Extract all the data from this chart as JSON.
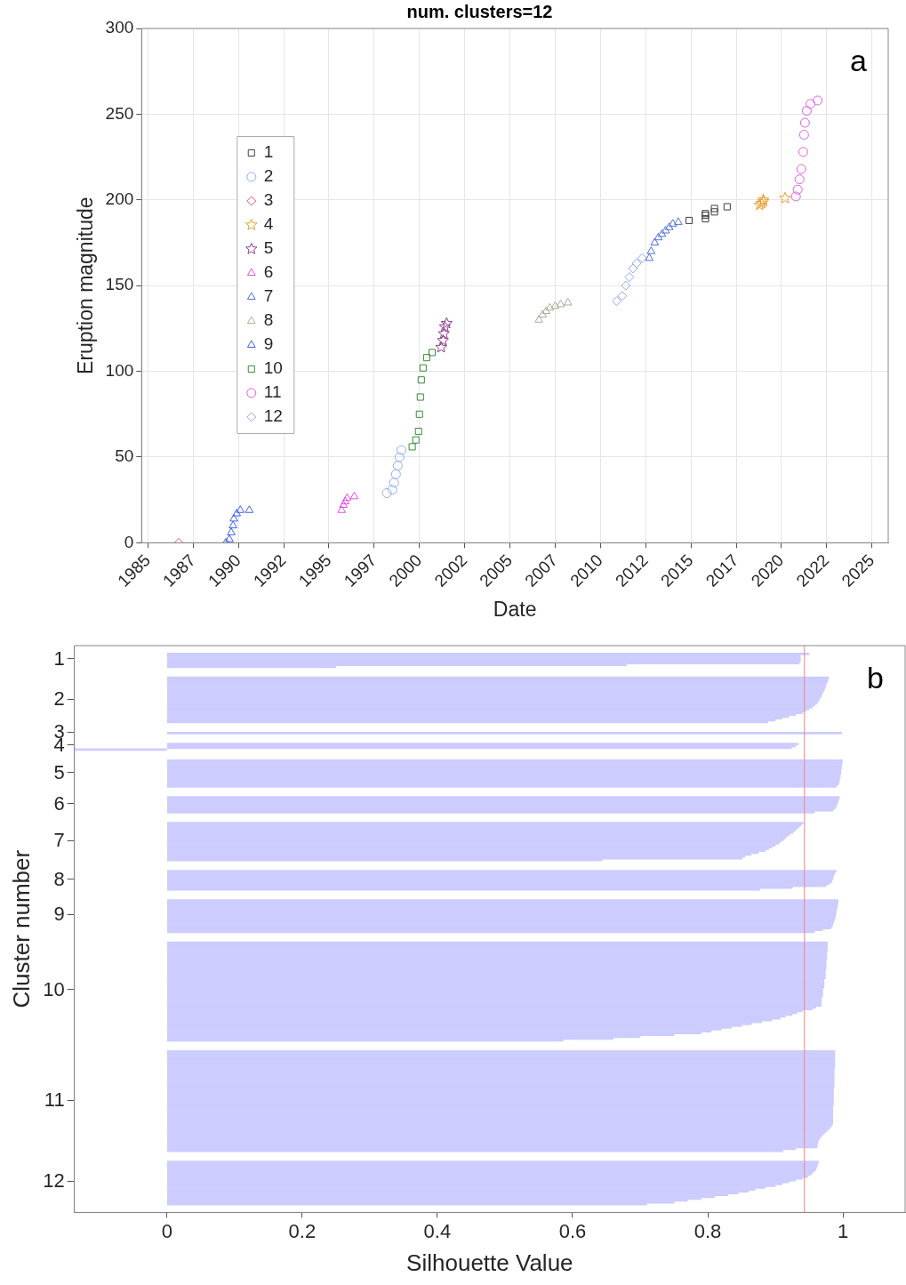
{
  "chart_data": [
    {
      "type": "scatter",
      "title": "num. clusters=12",
      "xlabel": "Date",
      "ylabel": "Eruption magnitude",
      "annotations": [
        "a"
      ],
      "grid": true,
      "legend": "left",
      "xlim": [
        1984.65,
        2025.9
      ],
      "xticks": [
        1985,
        {
          "value": 1987.5,
          "label": "1987"
        },
        1990,
        {
          "value": 1992.5,
          "label": "1992"
        },
        1995,
        {
          "value": 1997.5,
          "label": "1997"
        },
        2000,
        {
          "value": 2002.5,
          "label": "2002"
        },
        2005,
        {
          "value": 2007.5,
          "label": "2007"
        },
        2010,
        {
          "value": 2012.5,
          "label": "2012"
        },
        2015,
        {
          "value": 2017.5,
          "label": "2017"
        },
        2020,
        {
          "value": 2022.5,
          "label": "2022"
        },
        2025
      ],
      "ylim": [
        0,
        300
      ],
      "yticks": [
        0,
        50,
        100,
        150,
        200,
        250,
        300
      ],
      "series": [
        {
          "name": "1",
          "color": "#404040",
          "marker": "square",
          "x": [
            2014.9,
            2015.8,
            2015.8,
            2015.8,
            2016.3,
            2016.3,
            2017.0
          ],
          "values": [
            188,
            189,
            191,
            192,
            193,
            195,
            196
          ]
        },
        {
          "name": "2",
          "color": "#8fb0f0",
          "marker": "circle",
          "x": [
            1998.2,
            1998.5,
            1998.6,
            1998.7,
            1998.8,
            1998.9,
            1999.0
          ],
          "values": [
            29,
            31,
            35,
            40,
            45,
            50,
            54
          ]
        },
        {
          "name": "3",
          "color": "#e8506a",
          "marker": "diamond",
          "x": [
            1986.7
          ],
          "values": [
            0
          ]
        },
        {
          "name": "4",
          "color": "#e8a030",
          "marker": "star",
          "x": [
            2018.8,
            2018.9,
            2019.0,
            2019.0,
            2020.2
          ],
          "values": [
            197,
            198,
            199,
            200,
            201
          ]
        },
        {
          "name": "5",
          "color": "#8e3e8e",
          "marker": "star",
          "x": [
            2001.2,
            2001.3,
            2001.35,
            2001.4,
            2001.5
          ],
          "values": [
            114,
            118,
            122,
            126,
            128
          ]
        },
        {
          "name": "6",
          "color": "#e050e0",
          "marker": "triangle",
          "x": [
            1995.7,
            1995.8,
            1995.9,
            1996.0,
            1996.4
          ],
          "values": [
            19,
            22,
            24,
            26,
            27
          ]
        },
        {
          "name": "7",
          "color": "#5070d0",
          "marker": "triangle",
          "x": [
            2012.7,
            2012.8,
            2013.0,
            2013.2,
            2013.4,
            2013.6,
            2013.8,
            2014.0,
            2014.3
          ],
          "values": [
            166,
            170,
            175,
            178,
            180,
            182,
            184,
            186,
            187
          ]
        },
        {
          "name": "8",
          "color": "#a8b098",
          "marker": "triangle",
          "x": [
            2006.6,
            2006.8,
            2007.0,
            2007.2,
            2007.5,
            2007.8,
            2008.2
          ],
          "values": [
            130,
            133,
            135,
            137,
            138,
            139,
            140
          ]
        },
        {
          "name": "9",
          "color": "#4060f0",
          "marker": "triangle",
          "x": [
            1989.3,
            1989.5,
            1989.6,
            1989.7,
            1989.75,
            1989.9,
            1990.1,
            1990.6
          ],
          "values": [
            0,
            2,
            6,
            10,
            14,
            17,
            19,
            19
          ]
        },
        {
          "name": "10",
          "color": "#3a8a3a",
          "marker": "square",
          "x": [
            1999.6,
            1999.8,
            1999.95,
            2000.0,
            2000.05,
            2000.1,
            2000.2,
            2000.4,
            2000.7
          ],
          "values": [
            56,
            60,
            65,
            75,
            85,
            95,
            102,
            108,
            111
          ]
        },
        {
          "name": "11",
          "color": "#e060e0",
          "marker": "circle",
          "x": [
            2020.8,
            2020.9,
            2021.0,
            2021.1,
            2021.2,
            2021.25,
            2021.3,
            2021.4,
            2021.6,
            2022.0
          ],
          "values": [
            202,
            206,
            212,
            218,
            228,
            238,
            245,
            252,
            256,
            258
          ]
        },
        {
          "name": "12",
          "color": "#8ea8e8",
          "marker": "diamond",
          "x": [
            2010.9,
            2011.2,
            2011.4,
            2011.6,
            2011.8,
            2012.0,
            2012.3
          ],
          "values": [
            141,
            144,
            150,
            155,
            160,
            163,
            166
          ]
        }
      ]
    },
    {
      "type": "bar",
      "orientation": "horizontal",
      "xlabel": "Silhouette Value",
      "ylabel": "Cluster number",
      "annotations": [
        "b"
      ],
      "grid": false,
      "color": "#ccccff",
      "xlim": [
        -0.137,
        1.092
      ],
      "xticks": [
        0,
        0.2,
        0.4,
        0.6,
        0.8,
        1
      ],
      "ref_lines": [
        {
          "axis": "x",
          "value": 0.943,
          "color": "#ff8080"
        }
      ],
      "categories": [
        null,
        null,
        null,
        null,
        null,
        null,
        null,
        "1",
        null,
        null,
        null,
        null,
        null,
        null,
        null,
        null,
        null,
        null,
        null,
        null,
        null,
        null,
        null,
        null,
        null,
        null,
        null,
        null,
        null,
        "2",
        null,
        null,
        null,
        null,
        null,
        null,
        null,
        null,
        null,
        null,
        null,
        null,
        null,
        null,
        null,
        null,
        null,
        "3",
        null,
        null,
        null,
        null,
        null,
        null,
        "4",
        null,
        null,
        null,
        null,
        null,
        null,
        null,
        null,
        null,
        null,
        null,
        null,
        null,
        null,
        "5",
        null,
        null,
        null,
        null,
        null,
        null,
        null,
        null,
        null,
        null,
        null,
        null,
        null,
        null,
        null,
        null,
        "6",
        null,
        null,
        null,
        null,
        null,
        null,
        null,
        null,
        null,
        null,
        null,
        null,
        null,
        null,
        null,
        null,
        null,
        null,
        null,
        "7",
        null,
        null,
        null,
        null,
        null,
        null,
        null,
        null,
        null,
        null,
        null,
        null,
        null,
        null,
        null,
        null,
        null,
        null,
        null,
        null,
        "8",
        null,
        null,
        null,
        null,
        null,
        null,
        null,
        null,
        null,
        null,
        null,
        null,
        null,
        null,
        null,
        null,
        null,
        null,
        "9",
        null,
        null,
        null,
        null,
        null,
        null,
        null,
        null,
        null,
        null,
        null,
        null,
        null,
        null,
        null,
        null,
        null,
        null,
        null,
        null,
        null,
        null,
        null,
        null,
        null,
        null,
        null,
        null,
        null,
        null,
        null,
        null,
        null,
        null,
        null,
        null,
        null,
        null,
        null,
        null,
        "10",
        null,
        null,
        null,
        null,
        null,
        null,
        null,
        null,
        null,
        null,
        null,
        null,
        null,
        null,
        null,
        null,
        null,
        null,
        null,
        null,
        null,
        null,
        null,
        null,
        null,
        null,
        null,
        null,
        null,
        null,
        null,
        null,
        null,
        null,
        null,
        null,
        null,
        null,
        null,
        null,
        null,
        null,
        null,
        null,
        null,
        null,
        null,
        null,
        null,
        null,
        null,
        null,
        null,
        null,
        null,
        null,
        null,
        null,
        null,
        "11",
        null,
        null,
        null,
        null,
        null,
        null,
        null,
        null,
        null,
        null,
        null,
        null,
        null,
        null,
        null,
        null,
        null,
        null,
        null,
        null,
        null,
        null,
        null,
        null,
        null,
        null,
        null,
        null,
        null,
        null,
        null,
        null,
        null,
        null,
        null,
        null,
        null,
        null,
        null,
        null,
        null,
        null,
        null,
        "12",
        null,
        null,
        null,
        null,
        null,
        null,
        null,
        null,
        null,
        null,
        null,
        null,
        null,
        null,
        null,
        null
      ],
      "values": [
        null,
        null,
        null,
        null,
        0.95,
        0.937,
        0.937,
        0.937,
        0.937,
        0.935,
        0.68,
        0.25,
        null,
        null,
        null,
        null,
        null,
        0.979,
        0.978,
        0.977,
        0.976,
        0.975,
        0.974,
        0.973,
        0.972,
        0.97,
        0.969,
        0.968,
        0.966,
        0.965,
        0.963,
        0.961,
        0.958,
        0.955,
        0.95,
        0.945,
        0.94,
        0.93,
        0.92,
        0.91,
        0.9,
        0.889,
        null,
        null,
        null,
        null,
        null,
        0.998,
        null,
        null,
        null,
        null,
        null,
        0.934,
        0.93,
        0.924,
        -0.137,
        null,
        null,
        null,
        null,
        null,
        0.999,
        0.999,
        0.998,
        0.998,
        0.998,
        0.997,
        0.997,
        0.997,
        0.996,
        0.996,
        0.995,
        0.995,
        0.994,
        0.993,
        0.99,
        null,
        null,
        null,
        null,
        null,
        0.995,
        0.994,
        0.993,
        0.992,
        0.991,
        0.99,
        0.988,
        0.985,
        0.958,
        null,
        null,
        null,
        null,
        null,
        0.941,
        0.938,
        0.935,
        0.932,
        0.929,
        0.926,
        0.922,
        0.918,
        0.915,
        0.912,
        0.908,
        0.905,
        0.9,
        0.895,
        0.89,
        0.885,
        0.875,
        0.864,
        0.855,
        0.851,
        0.644,
        null,
        null,
        null,
        null,
        null,
        0.99,
        0.988,
        0.987,
        0.986,
        0.985,
        0.984,
        0.983,
        0.98,
        0.975,
        0.925,
        0.877,
        null,
        null,
        null,
        null,
        null,
        0.993,
        0.993,
        0.992,
        0.992,
        0.991,
        0.991,
        0.99,
        0.99,
        0.989,
        0.989,
        0.988,
        0.987,
        0.986,
        0.985,
        0.984,
        0.982,
        0.97,
        0.958,
        null,
        null,
        null,
        null,
        null,
        0.977,
        0.977,
        0.977,
        0.977,
        0.977,
        0.976,
        0.976,
        0.976,
        0.976,
        0.976,
        0.975,
        0.975,
        0.975,
        0.975,
        0.975,
        0.974,
        0.974,
        0.974,
        0.974,
        0.974,
        0.972,
        0.972,
        0.972,
        0.972,
        0.972,
        0.97,
        0.97,
        0.97,
        0.97,
        0.97,
        0.968,
        0.968,
        0.968,
        0.968,
        0.968,
        0.96,
        0.955,
        0.94,
        0.932,
        0.925,
        0.915,
        0.907,
        0.895,
        0.88,
        0.864,
        0.85,
        0.835,
        0.82,
        0.805,
        0.79,
        0.75,
        0.7,
        0.66,
        0.586,
        null,
        null,
        null,
        null,
        null,
        0.988,
        0.988,
        0.988,
        0.988,
        0.988,
        0.988,
        0.988,
        0.988,
        0.988,
        0.988,
        0.987,
        0.987,
        0.987,
        0.987,
        0.987,
        0.987,
        0.987,
        0.987,
        0.987,
        0.987,
        0.986,
        0.986,
        0.986,
        0.986,
        0.986,
        0.986,
        0.986,
        0.986,
        0.986,
        0.986,
        0.985,
        0.985,
        0.985,
        0.985,
        0.985,
        0.985,
        0.985,
        0.985,
        0.985,
        0.985,
        0.984,
        0.982,
        0.98,
        0.977,
        0.974,
        0.971,
        0.968,
        0.966,
        0.964,
        0.963,
        0.963,
        0.962,
        0.962,
        0.93,
        0.911,
        null,
        null,
        null,
        null,
        null,
        0.964,
        0.963,
        0.962,
        0.961,
        0.96,
        0.958,
        0.955,
        0.952,
        0.948,
        0.94,
        0.93,
        0.92,
        0.91,
        0.9,
        0.885,
        0.87,
        0.86,
        0.845,
        0.83,
        0.81,
        0.79,
        0.77,
        0.75,
        0.71,
        null,
        null,
        null,
        null
      ]
    }
  ]
}
